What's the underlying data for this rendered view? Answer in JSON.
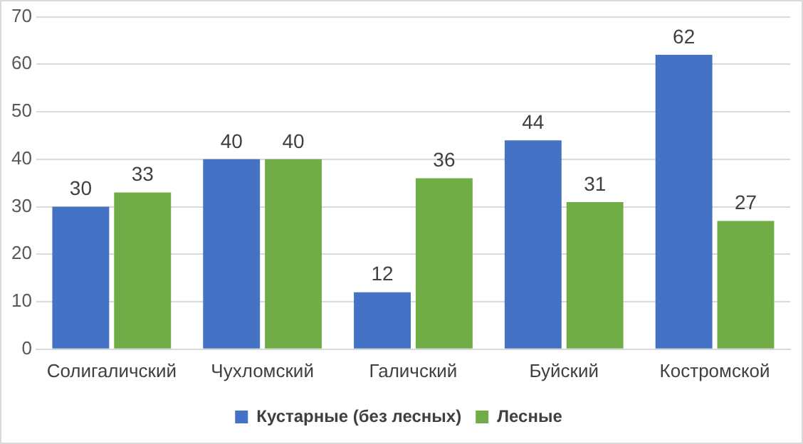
{
  "chart_data": {
    "type": "bar",
    "categories": [
      "Солигаличский",
      "Чухломский",
      "Галичский",
      "Буйский",
      "Костромской"
    ],
    "series": [
      {
        "name": "Кустарные (без лесных)",
        "color": "#4472c4",
        "values": [
          30,
          40,
          12,
          44,
          62
        ]
      },
      {
        "name": "Лесные",
        "color": "#70ad47",
        "values": [
          33,
          40,
          36,
          31,
          27
        ]
      }
    ],
    "ylim": [
      0,
      70
    ],
    "yticks": [
      0,
      10,
      20,
      30,
      40,
      50,
      60,
      70
    ],
    "grid": "y",
    "legend": "bottom",
    "data_labels": true
  }
}
